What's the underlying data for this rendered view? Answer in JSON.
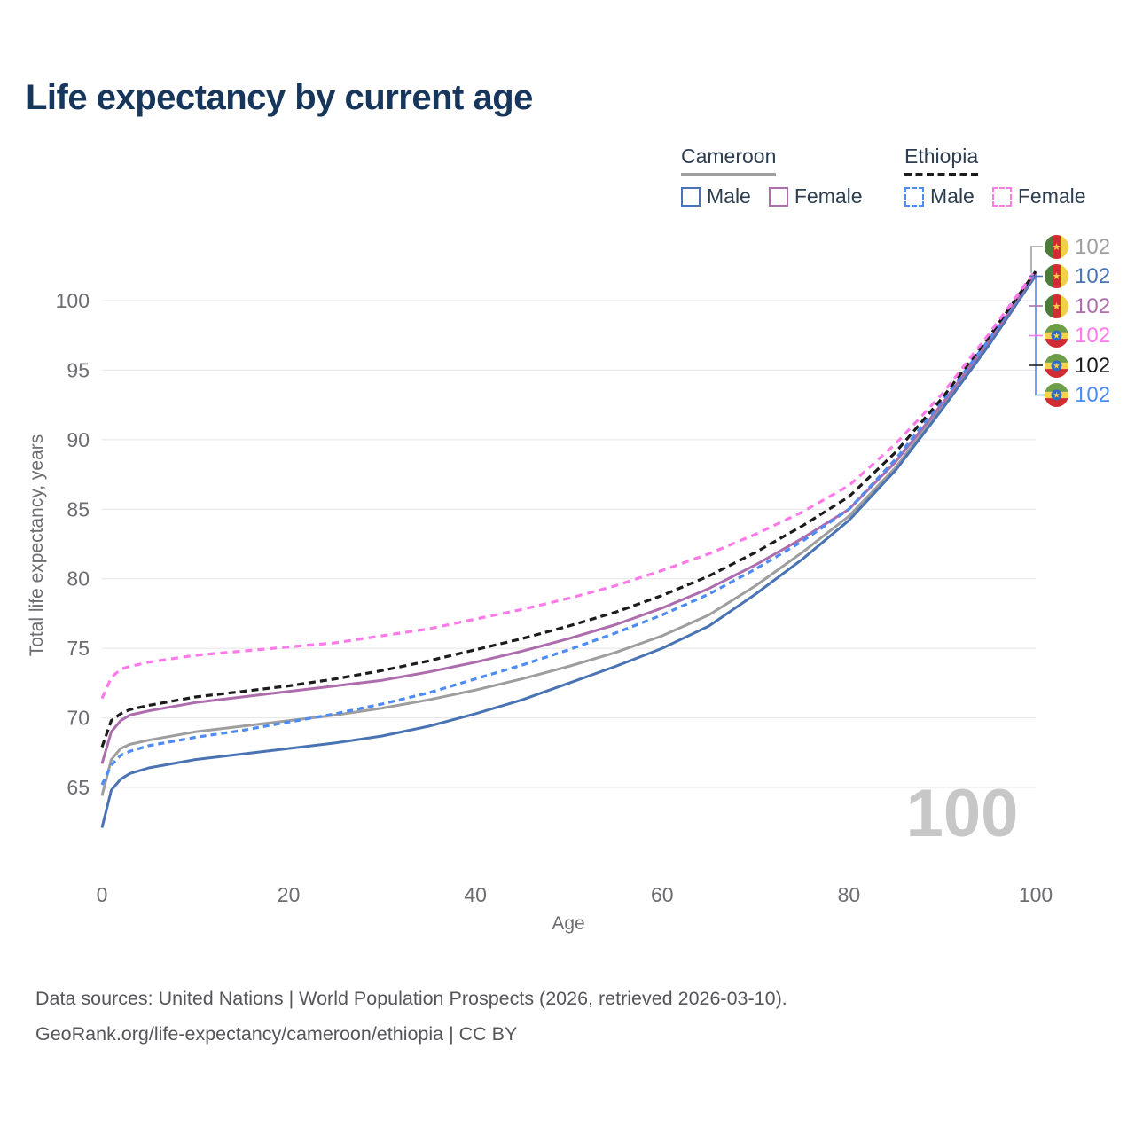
{
  "title": "Life expectancy by current age",
  "legend": {
    "groups": [
      {
        "name": "Cameroon",
        "line_style": "solid",
        "underline_color": "#9e9e9e",
        "items": [
          {
            "label": "Male",
            "color": "#4a73b3",
            "dash": false
          },
          {
            "label": "Female",
            "color": "#ad6dad",
            "dash": false
          }
        ]
      },
      {
        "name": "Ethiopia",
        "line_style": "dashed",
        "underline_color": "#1c1c1c",
        "items": [
          {
            "label": "Male",
            "color": "#4d8cf5",
            "dash": true
          },
          {
            "label": "Female",
            "color": "#ff7ae8",
            "dash": true
          }
        ]
      }
    ]
  },
  "chart_data": {
    "type": "line",
    "title": "Life expectancy by current age",
    "xlabel": "Age",
    "ylabel": "Total life expectancy, years",
    "x_ticks": [
      0,
      20,
      40,
      60,
      80,
      100
    ],
    "y_ticks": [
      65,
      70,
      75,
      80,
      85,
      90,
      95,
      100
    ],
    "xlim": [
      0,
      100
    ],
    "ylim": [
      61.5,
      103.5
    ],
    "grid": "horizontal",
    "legend_position": "top-right",
    "watermark": "100",
    "x": [
      0,
      1,
      2,
      3,
      5,
      10,
      15,
      20,
      25,
      30,
      35,
      40,
      45,
      50,
      55,
      60,
      65,
      70,
      75,
      80,
      85,
      90,
      95,
      100
    ],
    "series": [
      {
        "name": "Cameroon",
        "country": "Cameroon",
        "sex": "both",
        "color": "#9e9e9e",
        "dash": null,
        "width": 3,
        "values": [
          64.4,
          67.0,
          67.8,
          68.1,
          68.4,
          69.0,
          69.4,
          69.8,
          70.2,
          70.7,
          71.3,
          72.0,
          72.8,
          73.7,
          74.7,
          75.9,
          77.4,
          79.5,
          81.9,
          84.5,
          88.0,
          92.4,
          96.9,
          101.9
        ]
      },
      {
        "name": "Cameroon Male",
        "country": "Cameroon",
        "sex": "male",
        "color": "#4a73b3",
        "dash": null,
        "width": 3,
        "values": [
          62.1,
          64.8,
          65.6,
          66.0,
          66.4,
          67.0,
          67.4,
          67.8,
          68.2,
          68.7,
          69.4,
          70.3,
          71.3,
          72.5,
          73.7,
          75.0,
          76.6,
          78.9,
          81.4,
          84.2,
          87.8,
          92.2,
          96.8,
          101.8
        ]
      },
      {
        "name": "Cameroon Female",
        "country": "Cameroon",
        "sex": "female",
        "color": "#ad6dad",
        "dash": null,
        "width": 3,
        "values": [
          66.7,
          69.0,
          69.8,
          70.2,
          70.5,
          71.1,
          71.5,
          71.9,
          72.3,
          72.7,
          73.3,
          74.0,
          74.8,
          75.7,
          76.7,
          77.9,
          79.3,
          81.0,
          82.9,
          85.0,
          88.4,
          92.6,
          97.1,
          102.0
        ]
      },
      {
        "name": "Ethiopia Male",
        "country": "Ethiopia",
        "sex": "male",
        "color": "#4d8cf5",
        "dash": "7 5",
        "width": 3.2,
        "values": [
          65.2,
          66.6,
          67.3,
          67.6,
          68.0,
          68.6,
          69.1,
          69.7,
          70.3,
          71.0,
          71.8,
          72.8,
          73.8,
          74.9,
          76.1,
          77.4,
          78.9,
          80.7,
          82.7,
          85.0,
          88.6,
          92.8,
          97.2,
          102.1
        ]
      },
      {
        "name": "Ethiopia",
        "country": "Ethiopia",
        "sex": "both",
        "color": "#1c1c1c",
        "dash": "8 5",
        "width": 3.2,
        "values": [
          67.9,
          69.8,
          70.3,
          70.6,
          70.9,
          71.5,
          71.9,
          72.3,
          72.8,
          73.4,
          74.1,
          74.9,
          75.7,
          76.6,
          77.6,
          78.8,
          80.2,
          81.9,
          83.8,
          85.9,
          89.1,
          93.0,
          97.4,
          102.1
        ]
      },
      {
        "name": "Ethiopia Female",
        "country": "Ethiopia",
        "sex": "female",
        "color": "#ff7ae8",
        "dash": "8 6",
        "width": 3.2,
        "values": [
          71.4,
          72.9,
          73.5,
          73.7,
          74.0,
          74.5,
          74.8,
          75.1,
          75.4,
          75.9,
          76.4,
          77.1,
          77.8,
          78.6,
          79.5,
          80.6,
          81.8,
          83.2,
          84.8,
          86.7,
          89.7,
          93.3,
          97.6,
          102.2
        ]
      }
    ],
    "end_labels": [
      {
        "series": "Cameroon",
        "flag": "cameroon",
        "value": "102",
        "color": "#9e9e9e"
      },
      {
        "series": "Cameroon Male",
        "flag": "cameroon",
        "value": "102",
        "color": "#4a73b3"
      },
      {
        "series": "Cameroon Female",
        "flag": "cameroon",
        "value": "102",
        "color": "#ad6dad"
      },
      {
        "series": "Ethiopia Female",
        "flag": "ethiopia",
        "value": "102",
        "color": "#ff7ae8"
      },
      {
        "series": "Ethiopia",
        "flag": "ethiopia",
        "value": "102",
        "color": "#1c1c1c"
      },
      {
        "series": "Ethiopia Male",
        "flag": "ethiopia",
        "value": "102",
        "color": "#4d8cf5"
      }
    ]
  },
  "footer": {
    "line1": "Data sources: United Nations | World Population Prospects (2026, retrieved 2026-03-10).",
    "line2": "GeoRank.org/life-expectancy/cameroon/ethiopia | CC BY"
  }
}
